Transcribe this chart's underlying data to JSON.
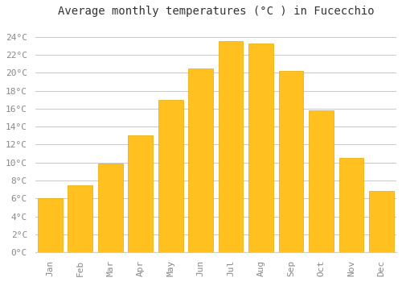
{
  "title": "Average monthly temperatures (°C ) in Fucecchio",
  "months": [
    "Jan",
    "Feb",
    "Mar",
    "Apr",
    "May",
    "Jun",
    "Jul",
    "Aug",
    "Sep",
    "Oct",
    "Nov",
    "Dec"
  ],
  "values": [
    6.0,
    7.5,
    9.9,
    13.0,
    17.0,
    20.5,
    23.5,
    23.3,
    20.2,
    15.8,
    10.5,
    6.8
  ],
  "bar_color": "#FFC020",
  "bar_edge_color": "#E8A800",
  "background_color": "#FFFFFF",
  "plot_background_color": "#FFFFFF",
  "grid_color": "#CCCCCC",
  "ylim": [
    0,
    25.5
  ],
  "yticks": [
    0,
    2,
    4,
    6,
    8,
    10,
    12,
    14,
    16,
    18,
    20,
    22,
    24
  ],
  "title_fontsize": 10,
  "tick_fontsize": 8,
  "font_family": "monospace",
  "tick_color": "#888888",
  "bar_width": 0.82
}
